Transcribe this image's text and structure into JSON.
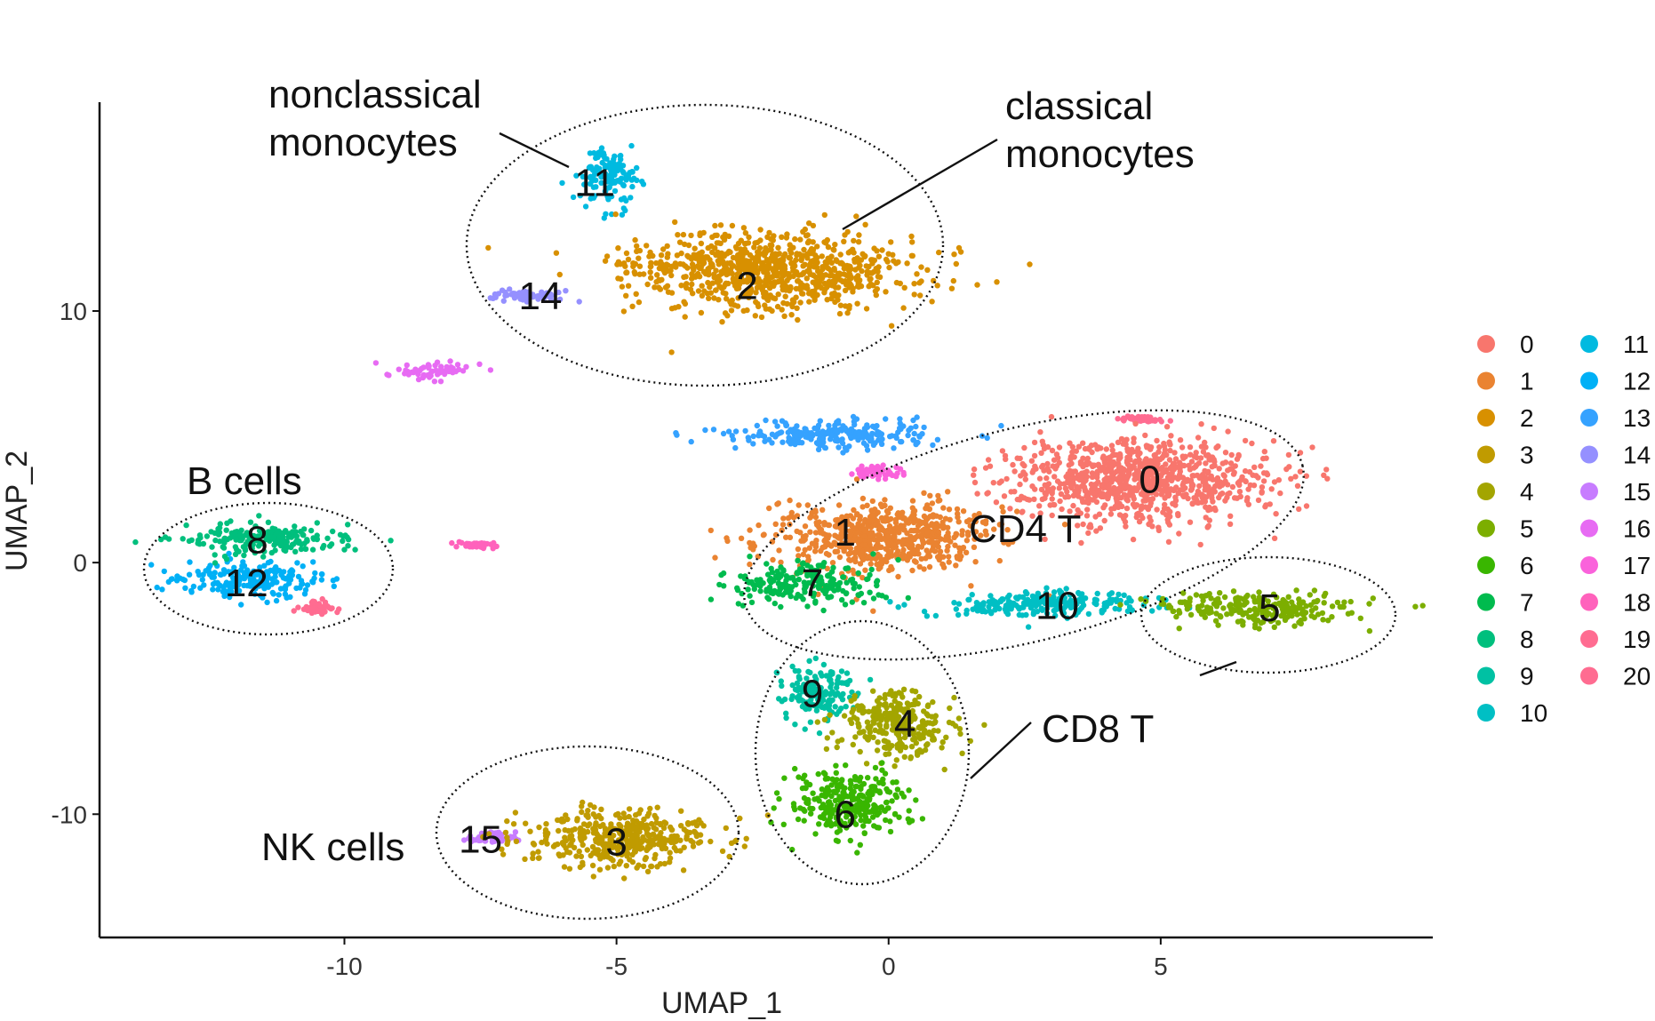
{
  "chart_data": {
    "type": "scatter",
    "title": "",
    "xlabel": "UMAP_1",
    "ylabel": "UMAP_2",
    "xlim": [
      -14.5,
      10
    ],
    "ylim": [
      -14.9,
      18.3
    ],
    "x_ticks": [
      -10,
      -5,
      0,
      5
    ],
    "y_ticks": [
      -10,
      0,
      10
    ],
    "x_tick_labels": [
      "-10",
      "-5",
      "0",
      "5"
    ],
    "y_tick_labels": [
      "-10",
      "0",
      "10"
    ],
    "grid": false,
    "legend": {
      "position": "right",
      "columns": 2,
      "entries": [
        {
          "label": "0",
          "color": "#F8766D"
        },
        {
          "label": "1",
          "color": "#EA8331"
        },
        {
          "label": "2",
          "color": "#D89000"
        },
        {
          "label": "3",
          "color": "#C09B00"
        },
        {
          "label": "4",
          "color": "#A3A500"
        },
        {
          "label": "5",
          "color": "#7CAE00"
        },
        {
          "label": "6",
          "color": "#39B600"
        },
        {
          "label": "7",
          "color": "#00BB4E"
        },
        {
          "label": "8",
          "color": "#00BF7D"
        },
        {
          "label": "9",
          "color": "#00C1A3"
        },
        {
          "label": "10",
          "color": "#00BFC4"
        },
        {
          "label": "11",
          "color": "#00BAE0"
        },
        {
          "label": "12",
          "color": "#00B0F6"
        },
        {
          "label": "13",
          "color": "#35A2FF"
        },
        {
          "label": "14",
          "color": "#9590FF"
        },
        {
          "label": "15",
          "color": "#C77CFF"
        },
        {
          "label": "16",
          "color": "#E76BF3"
        },
        {
          "label": "17",
          "color": "#FA62DB"
        },
        {
          "label": "18",
          "color": "#FF62BC"
        },
        {
          "label": "19",
          "color": "#FF6C91"
        },
        {
          "label": "20",
          "color": "#FF6C91"
        }
      ]
    },
    "clusters": [
      {
        "id": "0",
        "color": "#F8766D",
        "center": [
          4.6,
          3.3
        ],
        "spread": [
          2.2,
          1.5
        ],
        "label_pos": [
          4.8,
          3.3
        ]
      },
      {
        "id": "1",
        "color": "#EA8331",
        "center": [
          -0.2,
          1.0
        ],
        "spread": [
          1.9,
          1.3
        ],
        "label_pos": [
          -0.8,
          1.2
        ]
      },
      {
        "id": "2",
        "color": "#D89000",
        "center": [
          -2.3,
          11.6
        ],
        "spread": [
          2.4,
          1.4
        ],
        "label_pos": [
          -2.6,
          11.0
        ]
      },
      {
        "id": "3",
        "color": "#C09B00",
        "center": [
          -5.0,
          -11.0
        ],
        "spread": [
          1.6,
          1.0
        ],
        "label_pos": [
          -5.0,
          -11.1
        ]
      },
      {
        "id": "4",
        "color": "#A3A500",
        "center": [
          0.2,
          -6.4
        ],
        "spread": [
          0.9,
          1.2
        ],
        "label_pos": [
          0.3,
          -6.4
        ]
      },
      {
        "id": "5",
        "color": "#7CAE00",
        "center": [
          6.8,
          -1.8
        ],
        "spread": [
          1.6,
          0.6
        ],
        "label_pos": [
          7.0,
          -1.8
        ]
      },
      {
        "id": "6",
        "color": "#39B600",
        "center": [
          -0.7,
          -9.6
        ],
        "spread": [
          1.0,
          1.1
        ],
        "label_pos": [
          -0.8,
          -10.0
        ]
      },
      {
        "id": "7",
        "color": "#00BB4E",
        "center": [
          -1.6,
          -0.9
        ],
        "spread": [
          1.2,
          0.7
        ],
        "label_pos": [
          -1.4,
          -0.8
        ]
      },
      {
        "id": "8",
        "color": "#00BF7D",
        "center": [
          -11.6,
          0.9
        ],
        "spread": [
          1.4,
          0.6
        ],
        "label_pos": [
          -11.6,
          0.9
        ]
      },
      {
        "id": "9",
        "color": "#00C1A3",
        "center": [
          -1.3,
          -5.1
        ],
        "spread": [
          0.6,
          1.0
        ],
        "label_pos": [
          -1.4,
          -5.2
        ]
      },
      {
        "id": "10",
        "color": "#00BFC4",
        "center": [
          2.9,
          -1.6
        ],
        "spread": [
          1.7,
          0.5
        ],
        "label_pos": [
          3.1,
          -1.7
        ]
      },
      {
        "id": "11",
        "color": "#00BAE0",
        "center": [
          -5.1,
          15.3
        ],
        "spread": [
          0.5,
          1.0
        ],
        "label_pos": [
          -5.4,
          15.1
        ]
      },
      {
        "id": "12",
        "color": "#00B0F6",
        "center": [
          -11.7,
          -0.7
        ],
        "spread": [
          1.3,
          0.6
        ],
        "label_pos": [
          -11.8,
          -0.8
        ]
      },
      {
        "id": "13",
        "color": "#35A2FF",
        "center": [
          -1.0,
          5.1
        ],
        "spread": [
          1.8,
          0.5
        ],
        "label_pos": null
      },
      {
        "id": "14",
        "color": "#9590FF",
        "center": [
          -6.6,
          10.6
        ],
        "spread": [
          0.6,
          0.2
        ],
        "label_pos": [
          -6.4,
          10.6
        ]
      },
      {
        "id": "15",
        "color": "#C77CFF",
        "center": [
          -7.3,
          -10.9
        ],
        "spread": [
          0.4,
          0.2
        ],
        "label_pos": [
          -7.5,
          -11.0
        ]
      },
      {
        "id": "16",
        "color": "#E76BF3",
        "center": [
          -8.5,
          7.6
        ],
        "spread": [
          0.8,
          0.3
        ],
        "label_pos": null
      },
      {
        "id": "17",
        "color": "#FA62DB",
        "center": [
          -0.2,
          3.6
        ],
        "spread": [
          0.4,
          0.2
        ],
        "label_pos": null
      },
      {
        "id": "18",
        "color": "#FF62BC",
        "center": [
          -7.6,
          0.7
        ],
        "spread": [
          0.3,
          0.1
        ],
        "label_pos": null
      },
      {
        "id": "19",
        "color": "#FF6C91",
        "center": [
          -10.5,
          -1.8
        ],
        "spread": [
          0.3,
          0.2
        ],
        "label_pos": null
      },
      {
        "id": "20",
        "color": "#FF6C91",
        "center": [
          4.6,
          5.7
        ],
        "spread": [
          0.3,
          0.1
        ],
        "label_pos": null
      }
    ],
    "annotations": [
      {
        "text": "nonclassical\nmonocytes"
      },
      {
        "text": "classical\nmonocytes"
      },
      {
        "text": "B cells"
      },
      {
        "text": "CD4 T"
      },
      {
        "text": "CD8 T"
      },
      {
        "text": "NK cells"
      }
    ]
  }
}
